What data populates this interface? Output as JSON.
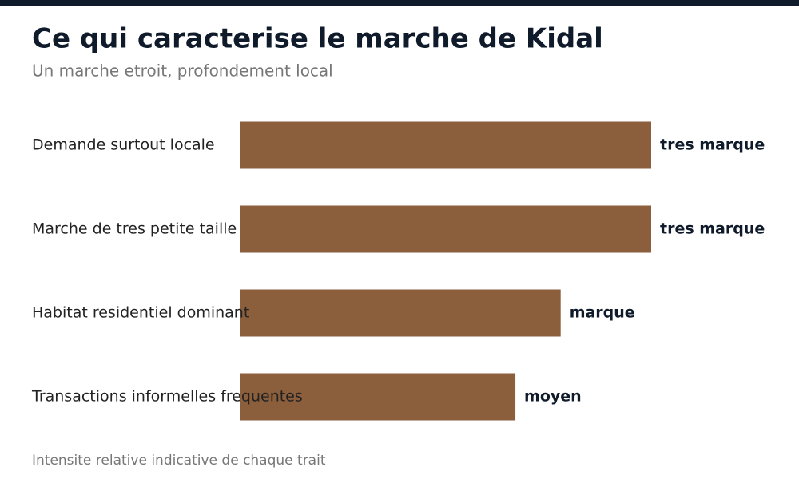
{
  "chart_data": {
    "type": "hbar",
    "title": "Ce qui caracterise le marche de Kidal",
    "subtitle": "Un marche etroit, profondement local",
    "note": "Intensite relative indicative de chaque trait",
    "categories": [
      "Demande surtout locale",
      "Marche de tres petite taille",
      "Habitat residentiel dominant",
      "Transactions informelles frequentes"
    ],
    "values": [
      100,
      100,
      78,
      67
    ],
    "value_labels": [
      "tres marque",
      "tres marque",
      "marque",
      "moyen"
    ],
    "color": "#8b5e3c",
    "xlim": [
      0,
      100
    ]
  }
}
